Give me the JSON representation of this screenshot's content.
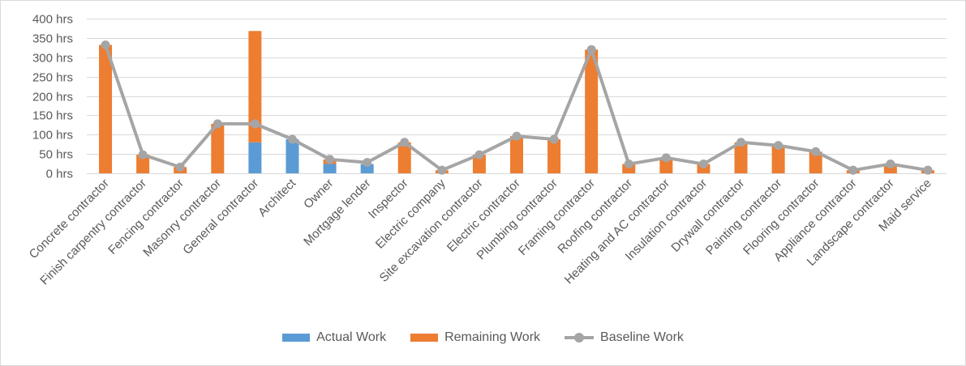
{
  "chart_data": {
    "type": "bar",
    "stacked": true,
    "categories": [
      "Concrete contractor",
      "Finish carpentry contractor",
      "Fencing contractor",
      "Masonry contractor",
      "General contractor",
      "Architect",
      "Owner",
      "Mortgage lender",
      "Inspector",
      "Electric company",
      "Site excavation contractor",
      "Electric contractor",
      "Plumbing contractor",
      "Framing contractor",
      "Roofing contractor",
      "Heating and AC contractor",
      "Insulation contractor",
      "Drywall contractor",
      "Painting contractor",
      "Flooring contractor",
      "Appliance contractor",
      "Landscape contractor",
      "Maid service"
    ],
    "series": [
      {
        "name": "Actual Work",
        "type": "bar",
        "color": "#5b9bd5",
        "values": [
          0,
          0,
          0,
          0,
          80,
          88,
          24,
          24,
          0,
          0,
          0,
          0,
          0,
          0,
          0,
          0,
          0,
          0,
          0,
          0,
          0,
          0,
          0
        ]
      },
      {
        "name": "Remaining Work",
        "type": "bar",
        "color": "#ed7d31",
        "values": [
          332,
          48,
          16,
          128,
          288,
          0,
          12,
          0,
          80,
          8,
          48,
          96,
          88,
          320,
          24,
          40,
          24,
          80,
          72,
          56,
          8,
          24,
          8
        ]
      },
      {
        "name": "Baseline Work",
        "type": "line",
        "color": "#a5a5a5",
        "values": [
          332,
          48,
          16,
          128,
          128,
          88,
          36,
          28,
          80,
          8,
          48,
          96,
          88,
          320,
          24,
          40,
          24,
          80,
          72,
          56,
          8,
          24,
          8
        ]
      }
    ],
    "yticks": [
      "0 hrs",
      "50 hrs",
      "100 hrs",
      "150 hrs",
      "200 hrs",
      "250 hrs",
      "300 hrs",
      "350 hrs",
      "400 hrs"
    ],
    "ylim": [
      0,
      400
    ],
    "ytick_step": 50,
    "grid": true,
    "legend_position": "bottom",
    "title": "",
    "xlabel": "",
    "ylabel": ""
  }
}
